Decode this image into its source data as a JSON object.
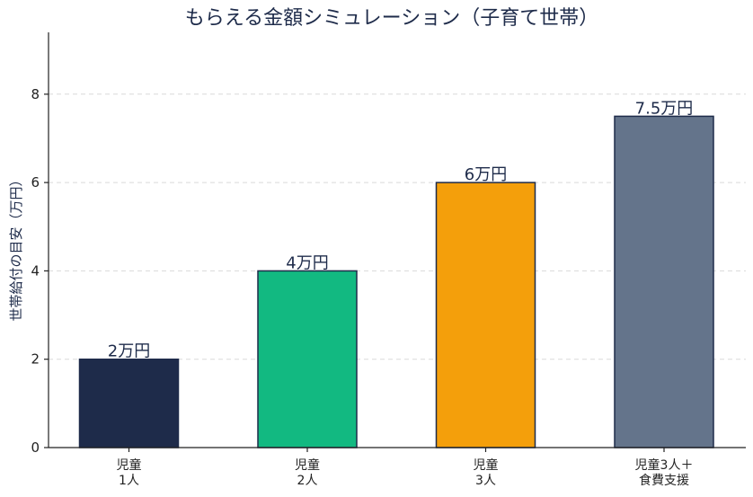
{
  "chart_data": {
    "type": "bar",
    "title": "もらえる金額シミュレーション（子育て世帯）",
    "xlabel": "",
    "ylabel": "世帯給付の目安（万円）",
    "categories": [
      [
        "児童",
        "1人"
      ],
      [
        "児童",
        "2人"
      ],
      [
        "児童",
        "3人"
      ],
      [
        "児童3人＋",
        "食費支援"
      ]
    ],
    "values": [
      2,
      4,
      6,
      7.5
    ],
    "data_labels": [
      "2万円",
      "4万円",
      "6万円",
      "7.5万円"
    ],
    "colors": [
      "#1e2b4a",
      "#12b981",
      "#f49f0b",
      "#64748b"
    ],
    "ylim": [
      0,
      9.4
    ],
    "yticks": [
      0,
      2,
      4,
      6,
      8
    ],
    "grid": "y-dashed",
    "legend": "none"
  }
}
